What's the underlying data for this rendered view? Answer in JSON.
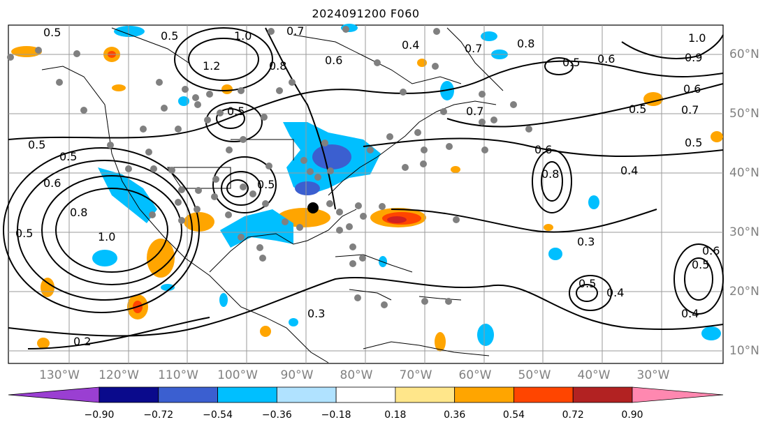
{
  "title": "2024091200 F060",
  "lon_labels": [
    "130°W",
    "120°W",
    "110°W",
    "100°W",
    "90°W",
    "80°W",
    "70°W",
    "60°W",
    "50°W",
    "40°W",
    "30°W"
  ],
  "lat_labels": [
    "60°N",
    "50°N",
    "40°N",
    "30°N",
    "20°N",
    "10°N"
  ],
  "colorbar": {
    "tick_labels": [
      "−0.90",
      "−0.72",
      "−0.54",
      "−0.36",
      "−0.18",
      "0.18",
      "0.36",
      "0.54",
      "0.72",
      "0.90"
    ],
    "colors": [
      "#9a3fd2",
      "#0a0a8c",
      "#3b5fd0",
      "#00bfff",
      "#b0e2ff",
      "#ffffff",
      "#ffe68a",
      "#ffa500",
      "#ff4500",
      "#b22222",
      "#ff88b0"
    ]
  },
  "contour_labels": [
    "1.0",
    "0.5",
    "0.7",
    "0.8",
    "0.6",
    "0.4",
    "1.2",
    "0.5",
    "0.7",
    "0.5",
    "0.6",
    "0.5",
    "0.5",
    "0.6",
    "0.7",
    "0.8",
    "0.5",
    "0.5",
    "0.6",
    "0.8",
    "1.0",
    "0.5",
    "0.7",
    "0.4",
    "0.3",
    "0.5",
    "0.4",
    "0.4",
    "0.3",
    "0.5",
    "0.6",
    "0.2",
    "0.9",
    "0.6",
    "0.8",
    "1.0",
    "0.5",
    "0.5"
  ],
  "feature_colors": {
    "orange": "#ffa500",
    "red": "#ff4500",
    "darkred": "#d02020",
    "sky": "#00bfff",
    "lightsky": "#b0e2ff",
    "blue": "#3b5fd0",
    "dots": "#808080"
  }
}
